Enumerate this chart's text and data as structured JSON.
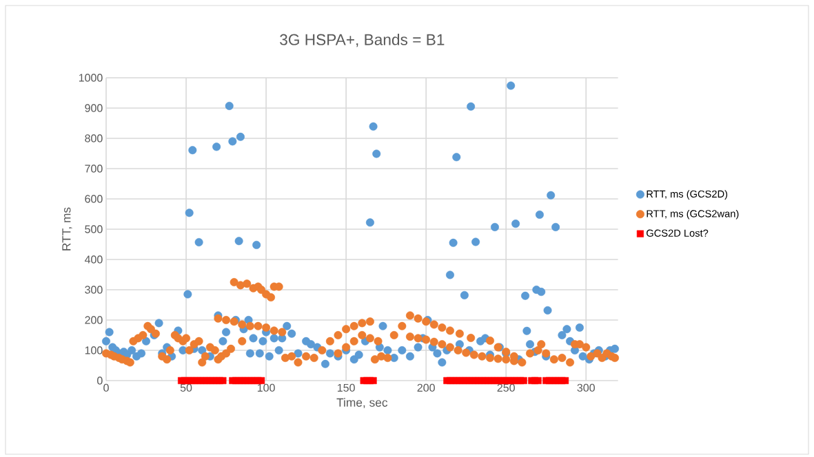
{
  "chart_data": {
    "type": "scatter",
    "title": "3G HSPA+, Bands = B1",
    "xlabel": "Time, sec",
    "ylabel": "RTT, ms",
    "xlim": [
      0,
      320
    ],
    "xticks": [
      0,
      50,
      100,
      150,
      200,
      250,
      300
    ],
    "ylim": [
      0,
      1000
    ],
    "yticks": [
      0,
      100,
      200,
      300,
      400,
      500,
      600,
      700,
      800,
      900,
      1000
    ],
    "grid": true,
    "legend": "right",
    "series": [
      {
        "name": "RTT, ms (GCS2D)",
        "color": "#5b9bd5",
        "marker": "circle",
        "x": [
          51,
          52,
          54,
          58,
          69,
          77,
          79,
          83,
          84,
          94,
          165,
          167,
          169,
          215,
          217,
          219,
          224,
          228,
          231,
          243,
          253,
          256,
          262,
          263,
          269,
          271,
          272,
          276,
          278,
          281,
          296,
          0,
          2,
          4,
          6,
          8,
          11,
          13,
          16,
          19,
          22,
          25,
          30,
          33,
          35,
          38,
          41,
          45,
          48,
          55,
          60,
          65,
          70,
          73,
          75,
          81,
          86,
          89,
          90,
          92,
          96,
          98,
          100,
          102,
          105,
          108,
          110,
          113,
          116,
          120,
          125,
          128,
          132,
          137,
          140,
          145,
          150,
          155,
          158,
          162,
          171,
          173,
          176,
          180,
          185,
          190,
          195,
          198,
          201,
          204,
          207,
          210,
          213,
          221,
          227,
          234,
          237,
          240,
          246,
          250,
          258,
          265,
          268,
          275,
          285,
          288,
          290,
          293,
          298,
          302,
          305,
          308,
          312,
          315,
          318
        ],
        "values": [
          285,
          554,
          761,
          457,
          772,
          907,
          790,
          461,
          805,
          448,
          522,
          839,
          749,
          349,
          455,
          738,
          282,
          905,
          458,
          507,
          974,
          518,
          280,
          164,
          300,
          548,
          293,
          232,
          612,
          507,
          175,
          130,
          160,
          110,
          100,
          90,
          95,
          85,
          100,
          80,
          90,
          130,
          150,
          190,
          90,
          110,
          80,
          165,
          100,
          105,
          100,
          80,
          215,
          130,
          160,
          200,
          170,
          200,
          90,
          140,
          90,
          130,
          160,
          80,
          140,
          100,
          140,
          180,
          155,
          90,
          130,
          120,
          110,
          55,
          90,
          80,
          100,
          70,
          85,
          130,
          110,
          180,
          100,
          75,
          100,
          80,
          110,
          140,
          200,
          110,
          90,
          60,
          100,
          120,
          100,
          130,
          140,
          85,
          110,
          90,
          70,
          120,
          95,
          80,
          150,
          170,
          130,
          100,
          80,
          70,
          90,
          100,
          80,
          100,
          105
        ]
      },
      {
        "name": "RTT, ms (GCS2wan)",
        "color": "#ed7d31",
        "marker": "circle",
        "x": [
          0,
          3,
          5,
          8,
          10,
          13,
          15,
          17,
          20,
          23,
          26,
          28,
          31,
          35,
          38,
          40,
          43,
          45,
          48,
          50,
          52,
          55,
          58,
          60,
          62,
          65,
          68,
          70,
          72,
          75,
          78,
          70,
          75,
          80,
          85,
          90,
          95,
          100,
          105,
          110,
          80,
          84,
          88,
          92,
          95,
          97,
          100,
          103,
          105,
          108,
          85,
          112,
          116,
          120,
          125,
          130,
          135,
          140,
          145,
          150,
          155,
          160,
          165,
          145,
          150,
          155,
          160,
          165,
          170,
          168,
          172,
          176,
          180,
          185,
          190,
          195,
          200,
          205,
          210,
          215,
          190,
          195,
          200,
          205,
          210,
          215,
          220,
          225,
          230,
          235,
          240,
          245,
          250,
          255,
          221,
          228,
          240,
          245,
          250,
          255,
          260,
          265,
          270,
          272,
          275,
          280,
          285,
          290,
          293,
          296,
          300,
          303,
          307,
          310,
          313,
          316,
          318
        ],
        "values": [
          90,
          85,
          80,
          75,
          70,
          65,
          60,
          130,
          140,
          150,
          180,
          170,
          155,
          80,
          70,
          100,
          150,
          140,
          130,
          140,
          100,
          120,
          130,
          60,
          80,
          110,
          100,
          70,
          80,
          90,
          105,
          205,
          200,
          195,
          185,
          180,
          180,
          175,
          165,
          160,
          325,
          315,
          320,
          305,
          310,
          300,
          285,
          275,
          310,
          310,
          130,
          75,
          80,
          60,
          80,
          75,
          100,
          130,
          150,
          170,
          180,
          190,
          195,
          90,
          110,
          130,
          150,
          140,
          130,
          70,
          80,
          75,
          150,
          180,
          215,
          205,
          195,
          185,
          175,
          165,
          145,
          140,
          135,
          128,
          120,
          110,
          100,
          92,
          85,
          80,
          75,
          72,
          70,
          65,
          155,
          141,
          132,
          110,
          95,
          80,
          60,
          90,
          100,
          120,
          90,
          70,
          75,
          60,
          120,
          120,
          110,
          80,
          90,
          75,
          90,
          80,
          75
        ]
      },
      {
        "name": "GCS2D Lost?",
        "color": "#ff0000",
        "marker": "square",
        "x": [
          47,
          49,
          51,
          53,
          55,
          57,
          59,
          61,
          63,
          65,
          67,
          69,
          71,
          73,
          79,
          81,
          83,
          85,
          87,
          89,
          91,
          93,
          95,
          97,
          161,
          163,
          165,
          167,
          213,
          215,
          217,
          219,
          221,
          223,
          225,
          227,
          229,
          231,
          233,
          235,
          237,
          239,
          241,
          243,
          245,
          247,
          249,
          251,
          253,
          255,
          257,
          259,
          261,
          266,
          268,
          270,
          275,
          277,
          279,
          281,
          283,
          285,
          287
        ],
        "values": [
          0,
          0,
          0,
          0,
          0,
          0,
          0,
          0,
          0,
          0,
          0,
          0,
          0,
          0,
          0,
          0,
          0,
          0,
          0,
          0,
          0,
          0,
          0,
          0,
          0,
          0,
          0,
          0,
          0,
          0,
          0,
          0,
          0,
          0,
          0,
          0,
          0,
          0,
          0,
          0,
          0,
          0,
          0,
          0,
          0,
          0,
          0,
          0,
          0,
          0,
          0,
          0,
          0,
          0,
          0,
          0,
          0,
          0,
          0,
          0,
          0,
          0,
          0
        ]
      }
    ]
  }
}
